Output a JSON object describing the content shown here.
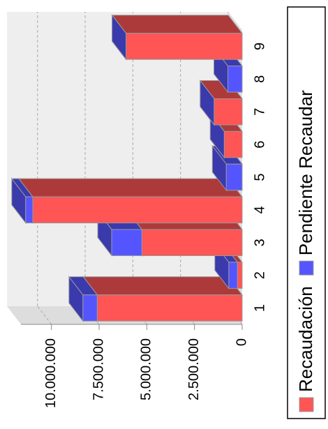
{
  "chart_data": {
    "type": "bar3d_stacked",
    "categories": [
      "1",
      "2",
      "3",
      "4",
      "5",
      "6",
      "7",
      "8",
      "9"
    ],
    "series": [
      {
        "name": "Recaudación",
        "color": "#ff5555",
        "values": [
          7600000,
          250000,
          5260000,
          10980000,
          0,
          940000,
          1470000,
          0,
          6090000
        ]
      },
      {
        "name": "Pendiente Recaudar",
        "color": "#5555ff",
        "values": [
          750000,
          450000,
          1580000,
          370000,
          830000,
          0,
          0,
          750000,
          0
        ]
      }
    ],
    "ylim": [
      0,
      11600000
    ],
    "yticks": [
      0,
      {
        "value": 2500000,
        "label": "2.500.000"
      },
      {
        "value": 5000000,
        "label": "5.000.000"
      },
      {
        "value": 7500000,
        "label": "7.500.000"
      },
      {
        "value": 10000000,
        "label": "10.000.000"
      }
    ],
    "grid": true,
    "legend": "bottom"
  }
}
